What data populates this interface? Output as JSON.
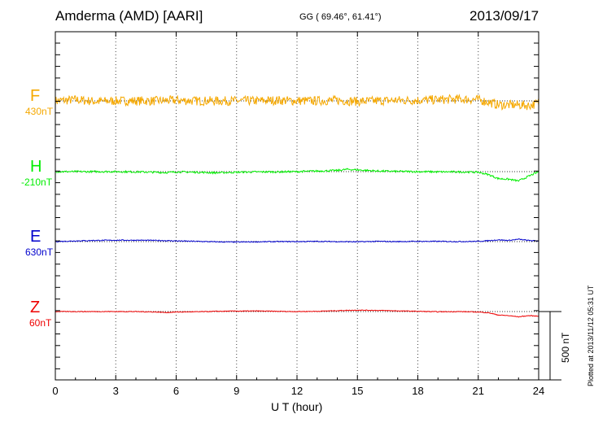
{
  "header": {
    "station": "Amderma (AMD)  [AARI]",
    "coords": "GG ( 69.46°,  61.41°)",
    "date": "2013/09/17"
  },
  "stamp": "Plotted at 2013/11/12 05:31  UT",
  "scale_bar": {
    "label": "500 nT",
    "value_nT": 500
  },
  "chart_data": {
    "type": "line",
    "title": "Amderma (AMD)  [AARI]",
    "xlabel": "U T (hour)",
    "ylabel": "",
    "xlim": [
      0,
      24
    ],
    "xticks": [
      0,
      3,
      6,
      9,
      12,
      15,
      18,
      21,
      24
    ],
    "grid": "dotted vertical every 3 h",
    "nT_per_tick": 100,
    "series": [
      {
        "name": "F",
        "baseline_label": "430nT",
        "color": "#f5a800",
        "noise": 40,
        "x": [
          0,
          1,
          2,
          3,
          4,
          5,
          6,
          7,
          8,
          9,
          10,
          11,
          12,
          13,
          14,
          15,
          16,
          17,
          18,
          19,
          20,
          21,
          21.5,
          22,
          22.5,
          23,
          23.5,
          24
        ],
        "y": [
          430,
          440,
          425,
          430,
          430,
          430,
          435,
          430,
          430,
          430,
          430,
          435,
          430,
          430,
          435,
          425,
          430,
          435,
          435,
          440,
          445,
          440,
          420,
          395,
          395,
          395,
          390,
          410
        ]
      },
      {
        "name": "H",
        "baseline_label": "-210nT",
        "color": "#00ee00",
        "noise": 8,
        "x": [
          0,
          1,
          2,
          3,
          4,
          5,
          5.5,
          6,
          7,
          8,
          9,
          10,
          11,
          12,
          13,
          14,
          14.5,
          15,
          16,
          17,
          18,
          19,
          20,
          21,
          21.5,
          22,
          22.5,
          23,
          23.5,
          24
        ],
        "y": [
          -210,
          -210,
          -210,
          -210,
          -212,
          -215,
          -218,
          -212,
          -215,
          -220,
          -215,
          -212,
          -212,
          -210,
          -205,
          -200,
          -190,
          -195,
          -205,
          -208,
          -210,
          -212,
          -212,
          -215,
          -235,
          -270,
          -275,
          -290,
          -250,
          -210
        ]
      },
      {
        "name": "E",
        "baseline_label": "630nT",
        "color": "#0000cc",
        "noise": 4,
        "x": [
          0,
          1,
          2,
          3,
          4,
          5,
          6,
          7,
          8,
          9,
          10,
          11,
          12,
          13,
          14,
          15,
          16,
          17,
          18,
          19,
          20,
          21,
          21.5,
          22,
          22.5,
          23,
          23.5,
          24
        ],
        "y": [
          630,
          636,
          640,
          642,
          642,
          640,
          636,
          632,
          628,
          626,
          628,
          630,
          630,
          632,
          630,
          628,
          632,
          630,
          632,
          632,
          630,
          632,
          638,
          645,
          640,
          650,
          640,
          635
        ]
      },
      {
        "name": "Z",
        "baseline_label": "60nT",
        "color": "#ee0000",
        "noise": 3,
        "x": [
          0,
          1,
          2,
          3,
          4,
          5,
          5.5,
          6,
          7,
          8,
          9,
          10,
          11,
          12,
          13,
          14,
          15,
          16,
          17,
          18,
          19,
          20,
          21,
          21.5,
          22,
          22.5,
          23,
          23.5,
          24
        ],
        "y": [
          60,
          60,
          60,
          60,
          60,
          56,
          52,
          56,
          58,
          62,
          64,
          65,
          62,
          60,
          62,
          68,
          72,
          70,
          66,
          62,
          58,
          60,
          56,
          50,
          30,
          25,
          15,
          25,
          20
        ]
      }
    ]
  }
}
